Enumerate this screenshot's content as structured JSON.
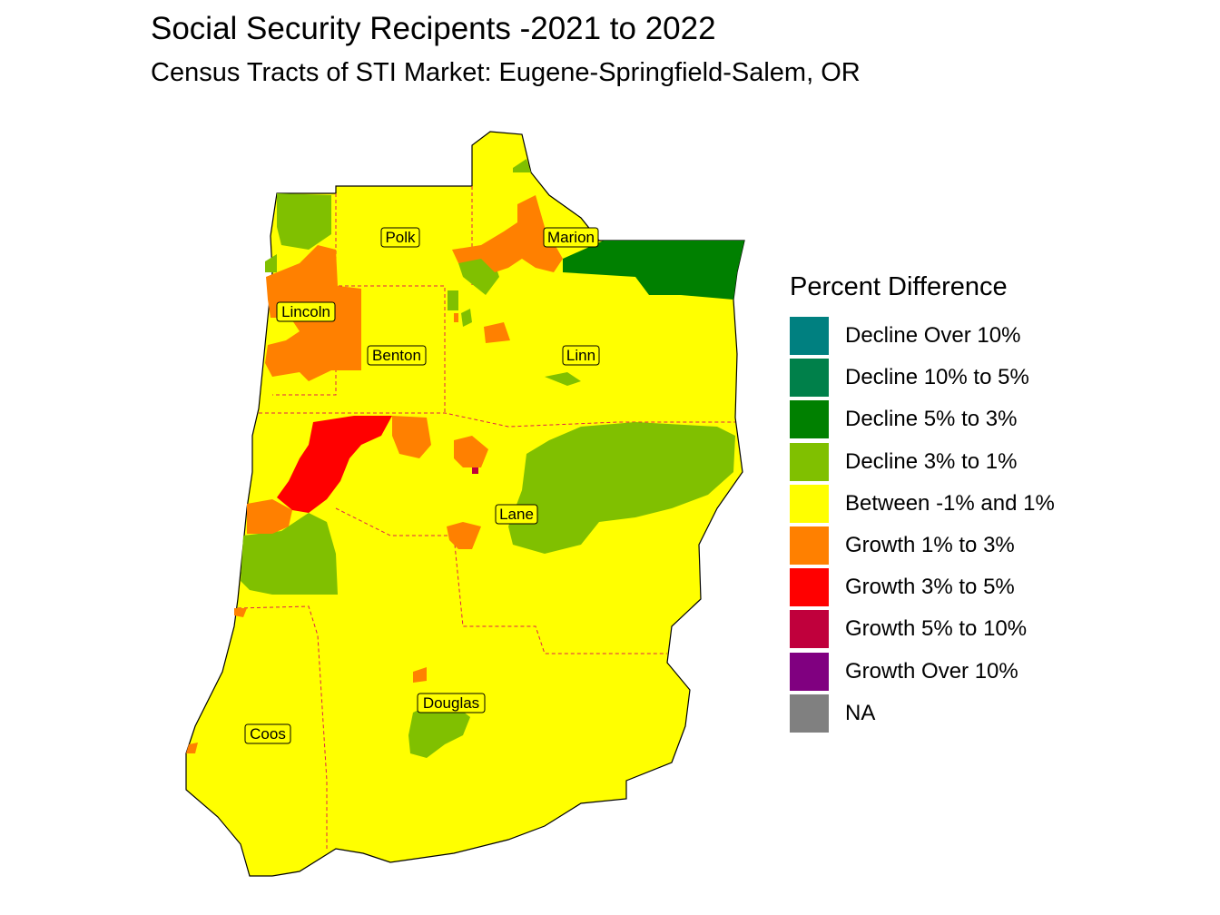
{
  "title": "Social Security Recipents -2021 to 2022",
  "subtitle": "Census Tracts of STI Market: Eugene-Springfield-Salem, OR",
  "legend": {
    "title": "Percent Difference",
    "items": [
      {
        "label": "Decline Over 10%",
        "color": "#008080"
      },
      {
        "label": "Decline 10% to 5%",
        "color": "#00804A"
      },
      {
        "label": "Decline 5% to 3%",
        "color": "#008000"
      },
      {
        "label": "Decline 3% to 1%",
        "color": "#80C000"
      },
      {
        "label": "Between -1% and 1%",
        "color": "#FFFF00"
      },
      {
        "label": "Growth 1% to 3%",
        "color": "#FF8000"
      },
      {
        "label": "Growth 3% to 5%",
        "color": "#FF0000"
      },
      {
        "label": "Growth 5% to 10%",
        "color": "#C0003C"
      },
      {
        "label": "Growth Over 10%",
        "color": "#800080"
      },
      {
        "label": "NA",
        "color": "#808080"
      }
    ]
  },
  "counties": [
    {
      "name": "Polk"
    },
    {
      "name": "Marion"
    },
    {
      "name": "Lincoln"
    },
    {
      "name": "Benton"
    },
    {
      "name": "Linn"
    },
    {
      "name": "Lane"
    },
    {
      "name": "Douglas"
    },
    {
      "name": "Coos"
    }
  ]
}
